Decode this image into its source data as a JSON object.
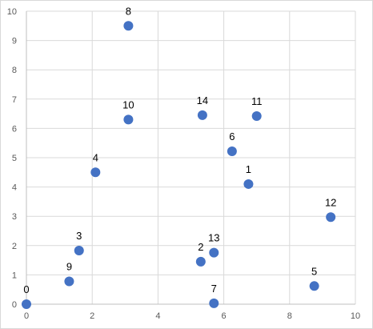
{
  "chart_data": {
    "type": "scatter",
    "title": "",
    "xlabel": "",
    "ylabel": "",
    "xlim": [
      0,
      10
    ],
    "ylim": [
      0,
      10
    ],
    "x_ticks": [
      "0",
      "2",
      "4",
      "6",
      "8",
      "10"
    ],
    "y_ticks": [
      "0",
      "1",
      "2",
      "3",
      "4",
      "5",
      "6",
      "7",
      "8",
      "9",
      "10"
    ],
    "grid": true,
    "legend": "none",
    "marker_color": "#4472c4",
    "grid_color": "#d9d9d9",
    "points": [
      {
        "label": "0",
        "x": 0.0,
        "y": 0.0
      },
      {
        "label": "1",
        "x": 6.75,
        "y": 4.1
      },
      {
        "label": "2",
        "x": 5.3,
        "y": 1.45
      },
      {
        "label": "3",
        "x": 1.6,
        "y": 1.83
      },
      {
        "label": "4",
        "x": 2.1,
        "y": 4.5
      },
      {
        "label": "5",
        "x": 8.75,
        "y": 0.62
      },
      {
        "label": "6",
        "x": 6.25,
        "y": 5.22
      },
      {
        "label": "7",
        "x": 5.7,
        "y": 0.03
      },
      {
        "label": "8",
        "x": 3.1,
        "y": 9.5
      },
      {
        "label": "9",
        "x": 1.3,
        "y": 0.78
      },
      {
        "label": "10",
        "x": 3.1,
        "y": 6.3
      },
      {
        "label": "11",
        "x": 7.0,
        "y": 6.42
      },
      {
        "label": "12",
        "x": 9.25,
        "y": 2.97
      },
      {
        "label": "13",
        "x": 5.7,
        "y": 1.76
      },
      {
        "label": "14",
        "x": 5.35,
        "y": 6.45
      }
    ]
  }
}
